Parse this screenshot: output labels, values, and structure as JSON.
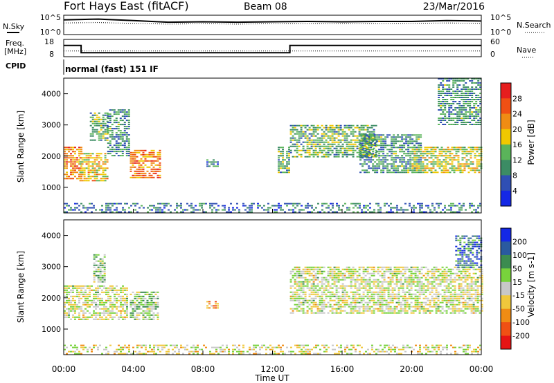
{
  "header": {
    "station": "Fort Hays East (fitACF)",
    "beam": "Beam 08",
    "date": "23/Mar/2016"
  },
  "noise_panel": {
    "left_label": "N.Sky",
    "right_label": "N.Search",
    "left_ticks": [
      "10^5",
      "10^0"
    ],
    "right_ticks": [
      "10^5",
      "10^0"
    ]
  },
  "freq_panel": {
    "left_label_1": "Freq.",
    "left_label_2": "[MHz]",
    "right_label": "Nave",
    "left_ticks": [
      "18",
      "8"
    ],
    "right_ticks": [
      "60",
      "0"
    ],
    "cpid_label": "CPID",
    "mode_text": "normal (fast) 151 IF"
  },
  "power_panel": {
    "ylabel": "Slant Range [km]",
    "yticks": [
      "1000",
      "2000",
      "3000",
      "4000"
    ],
    "colorbar_label": "Power [dB]",
    "colorbar_ticks": [
      "4",
      "8",
      "12",
      "16",
      "20",
      "24",
      "28"
    ],
    "colors": [
      "#1428e6",
      "#2f4fb4",
      "#3c8c64",
      "#5ab45a",
      "#f0c800",
      "#f08c14",
      "#f05014",
      "#e61e1e"
    ]
  },
  "velocity_panel": {
    "ylabel": "Slant Range [km]",
    "yticks": [
      "1000",
      "2000",
      "3000",
      "4000"
    ],
    "colorbar_label": "Velocity [m s-1]",
    "colorbar_ticks": [
      "200",
      "100",
      "50",
      "15",
      "-15",
      "-50",
      "-100",
      "-200"
    ],
    "colors": [
      "#1428e6",
      "#2a5aa0",
      "#3c8c50",
      "#78d23c",
      "#c8c8c8",
      "#f0c83c",
      "#f08c14",
      "#f05014",
      "#e61414"
    ]
  },
  "xaxis": {
    "label": "Time UT",
    "ticks": [
      "00:00",
      "04:00",
      "08:00",
      "12:00",
      "16:00",
      "20:00",
      "00:00"
    ]
  },
  "chart_data": [
    {
      "type": "line",
      "title": "N.Sky / N.Search",
      "x_range_hours": [
        0,
        24
      ],
      "series": [
        {
          "name": "N.Sky",
          "x": [
            0,
            2,
            4,
            6,
            8,
            10,
            12,
            14,
            16,
            18,
            20,
            22,
            24
          ],
          "y_log10": [
            3.8,
            4.0,
            3.6,
            3.2,
            3.3,
            3.2,
            3.3,
            3.4,
            3.3,
            3.4,
            3.4,
            3.6,
            3.5
          ]
        },
        {
          "name": "N.Search",
          "x": [
            0,
            2,
            4,
            6,
            8,
            10,
            12,
            14,
            16,
            18,
            20,
            22,
            24
          ],
          "y_log10": [
            3.0,
            3.1,
            2.9,
            2.7,
            2.8,
            2.7,
            2.8,
            2.8,
            2.8,
            2.8,
            2.9,
            3.0,
            2.9
          ]
        }
      ],
      "ylim_log10": [
        0,
        5
      ]
    },
    {
      "type": "line",
      "title": "Freq / Nave",
      "series": [
        {
          "name": "Freq.",
          "x": [
            0,
            1.0,
            1.0,
            13.0,
            13.0,
            24
          ],
          "y": [
            14.5,
            14.5,
            10.3,
            10.3,
            14.5,
            14.5
          ],
          "ylim": [
            8,
            18
          ]
        },
        {
          "name": "Nave",
          "x": [
            0,
            24
          ],
          "y": [
            20,
            20
          ],
          "ylim": [
            0,
            60
          ]
        }
      ],
      "mode": "normal (fast) 151 IF"
    },
    {
      "type": "heatmap",
      "title": "Power",
      "x_range_hours": [
        0,
        24
      ],
      "y_range_km": [
        180,
        4500
      ],
      "color_scale_db": [
        0,
        30
      ],
      "regions": [
        {
          "t_start": 0.0,
          "t_end": 1.0,
          "r_start": 1300,
          "r_end": 2300,
          "value": 22
        },
        {
          "t_start": 0.9,
          "t_end": 2.5,
          "r_start": 1200,
          "r_end": 2100,
          "value": 18
        },
        {
          "t_start": 1.5,
          "t_end": 2.5,
          "r_start": 2500,
          "r_end": 3400,
          "value": 12
        },
        {
          "t_start": 2.5,
          "t_end": 3.7,
          "r_start": 2000,
          "r_end": 3500,
          "value": 10
        },
        {
          "t_start": 3.8,
          "t_end": 5.5,
          "r_start": 1300,
          "r_end": 2200,
          "value": 22
        },
        {
          "t_start": 8.2,
          "t_end": 8.8,
          "r_start": 1700,
          "r_end": 1900,
          "value": 8
        },
        {
          "t_start": 12.3,
          "t_end": 13.0,
          "r_start": 1500,
          "r_end": 2300,
          "value": 12
        },
        {
          "t_start": 13.0,
          "t_end": 18.0,
          "r_start": 2000,
          "r_end": 3000,
          "value": 12
        },
        {
          "t_start": 17.0,
          "t_end": 20.5,
          "r_start": 1500,
          "r_end": 2700,
          "value": 10
        },
        {
          "t_start": 20.0,
          "t_end": 24.0,
          "r_start": 1500,
          "r_end": 2300,
          "value": 16
        },
        {
          "t_start": 21.5,
          "t_end": 24.0,
          "r_start": 3000,
          "r_end": 4500,
          "value": 10
        },
        {
          "t_start": 0.0,
          "t_end": 24.0,
          "r_start": 180,
          "r_end": 500,
          "value": 8
        }
      ]
    },
    {
      "type": "heatmap",
      "title": "Velocity",
      "x_range_hours": [
        0,
        24
      ],
      "y_range_km": [
        180,
        4500
      ],
      "color_scale_ms": [
        -250,
        250
      ],
      "regions": [
        {
          "t_start": 0.0,
          "t_end": 3.7,
          "r_start": 1300,
          "r_end": 2400,
          "value": 0
        },
        {
          "t_start": 1.7,
          "t_end": 2.3,
          "r_start": 2500,
          "r_end": 3400,
          "value": 40
        },
        {
          "t_start": 3.8,
          "t_end": 5.4,
          "r_start": 1300,
          "r_end": 2200,
          "value": 40
        },
        {
          "t_start": 8.2,
          "t_end": 8.8,
          "r_start": 1700,
          "r_end": 1900,
          "value": -100
        },
        {
          "t_start": 13.0,
          "t_end": 24.0,
          "r_start": 1500,
          "r_end": 3000,
          "value": 0
        },
        {
          "t_start": 22.5,
          "t_end": 24.0,
          "r_start": 3000,
          "r_end": 4000,
          "value": 150
        },
        {
          "t_start": 0.0,
          "t_end": 24.0,
          "r_start": 180,
          "r_end": 500,
          "value": -15
        }
      ]
    }
  ]
}
